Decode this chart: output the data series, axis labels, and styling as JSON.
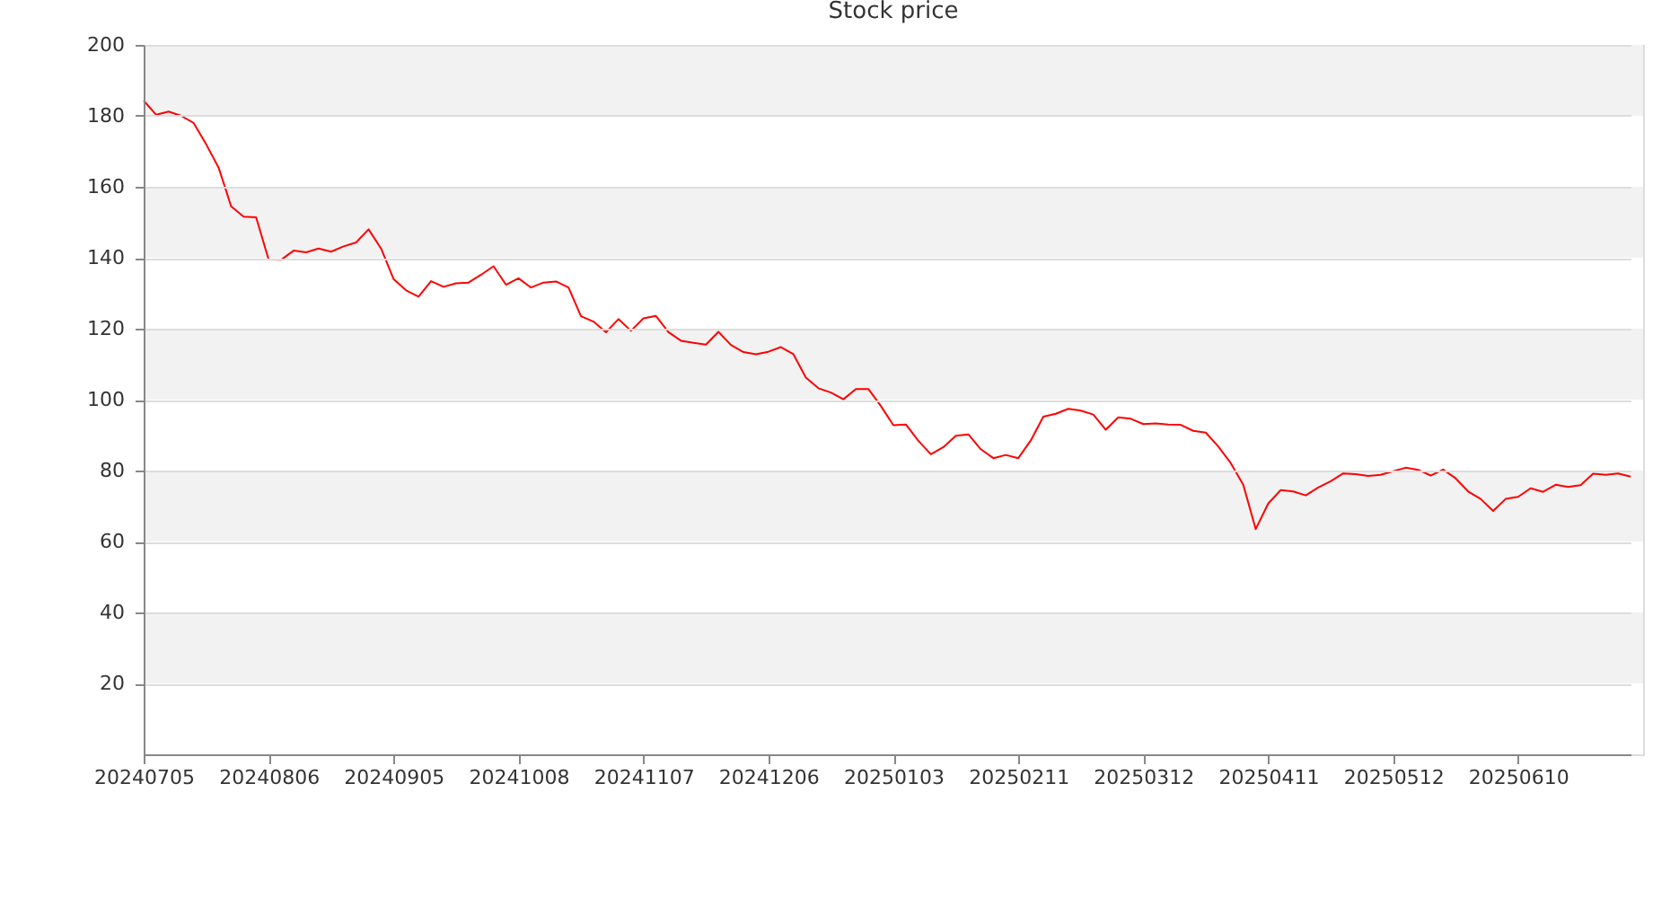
{
  "chart_data": {
    "type": "line",
    "title": "Stock price",
    "categories": [
      "20240705",
      null,
      null,
      null,
      null,
      null,
      null,
      null,
      null,
      null,
      "20240806",
      null,
      null,
      null,
      null,
      null,
      null,
      null,
      null,
      null,
      "20240905",
      null,
      null,
      null,
      null,
      null,
      null,
      null,
      null,
      null,
      "20241008",
      null,
      null,
      null,
      null,
      null,
      null,
      null,
      null,
      null,
      "20241107",
      null,
      null,
      null,
      null,
      null,
      null,
      null,
      null,
      null,
      "20241206",
      null,
      null,
      null,
      null,
      null,
      null,
      null,
      null,
      null,
      "20250103",
      null,
      null,
      null,
      null,
      null,
      null,
      null,
      null,
      null,
      "20250211",
      null,
      null,
      null,
      null,
      null,
      null,
      null,
      null,
      null,
      "20250312",
      null,
      null,
      null,
      null,
      null,
      null,
      null,
      null,
      null,
      "20250411",
      null,
      null,
      null,
      null,
      null,
      null,
      null,
      null,
      null,
      "20250512",
      null,
      null,
      null,
      null,
      null,
      null,
      null,
      null,
      null,
      "20250610",
      null,
      null,
      null,
      null,
      null,
      null,
      null,
      null,
      null
    ],
    "series": [
      {
        "color": "#ff0000",
        "values": [
          184.3,
          180.3,
          181.2,
          180,
          178,
          172,
          165.4,
          154.5,
          151.6,
          151.4,
          139.5,
          139.4,
          142,
          141.5,
          142.6,
          141.7,
          143.2,
          144.3,
          148,
          142.6,
          134,
          130.8,
          129,
          133.4,
          131.8,
          132.8,
          133,
          135.2,
          137.6,
          132.4,
          134.2,
          131.6,
          133,
          133.3,
          131.6,
          123.5,
          122,
          119,
          122.7,
          119.4,
          122.9,
          123.6,
          119,
          116.6,
          116,
          115.5,
          119.1,
          115.4,
          113.4,
          112.8,
          113.5,
          114.8,
          112.8,
          106.2,
          103.2,
          102,
          100.1,
          103,
          103,
          98.2,
          92.8,
          93,
          88.4,
          84.6,
          86.6,
          89.8,
          90.2,
          86,
          83.5,
          84.4,
          83.5,
          88.5,
          95.2,
          96,
          97.4,
          96.9,
          95.8,
          91.5,
          95,
          94.6,
          93.1,
          93.3,
          93,
          92.9,
          91.2,
          90.7,
          86.8,
          82.1,
          76,
          63.5,
          70.7,
          74.5,
          74.1,
          73,
          75.2,
          77,
          79.2,
          79,
          78.5,
          78.8,
          79.8,
          80.8,
          80.2,
          78.6,
          80.3,
          77.8,
          74.1,
          72,
          68.6,
          72,
          72.6,
          75,
          74,
          76,
          75.4,
          75.9,
          79.1,
          78.8,
          79.2,
          78.3
        ]
      }
    ],
    "ylim": [
      0,
      200
    ],
    "yticks": [
      20,
      40,
      60,
      80,
      100,
      120,
      140,
      160,
      180,
      200
    ],
    "bands": [
      {
        "axis": "y",
        "from": 20,
        "to": 40,
        "color": "#f2f2f2"
      },
      {
        "axis": "y",
        "from": 60,
        "to": 80,
        "color": "#f2f2f2"
      },
      {
        "axis": "y",
        "from": 100,
        "to": 120,
        "color": "#f2f2f2"
      },
      {
        "axis": "y",
        "from": 140,
        "to": 160,
        "color": "#f2f2f2"
      },
      {
        "axis": "y",
        "from": 180,
        "to": 200,
        "color": "#f2f2f2"
      }
    ],
    "grid": "y",
    "marker": "none",
    "line_style": "solid"
  }
}
